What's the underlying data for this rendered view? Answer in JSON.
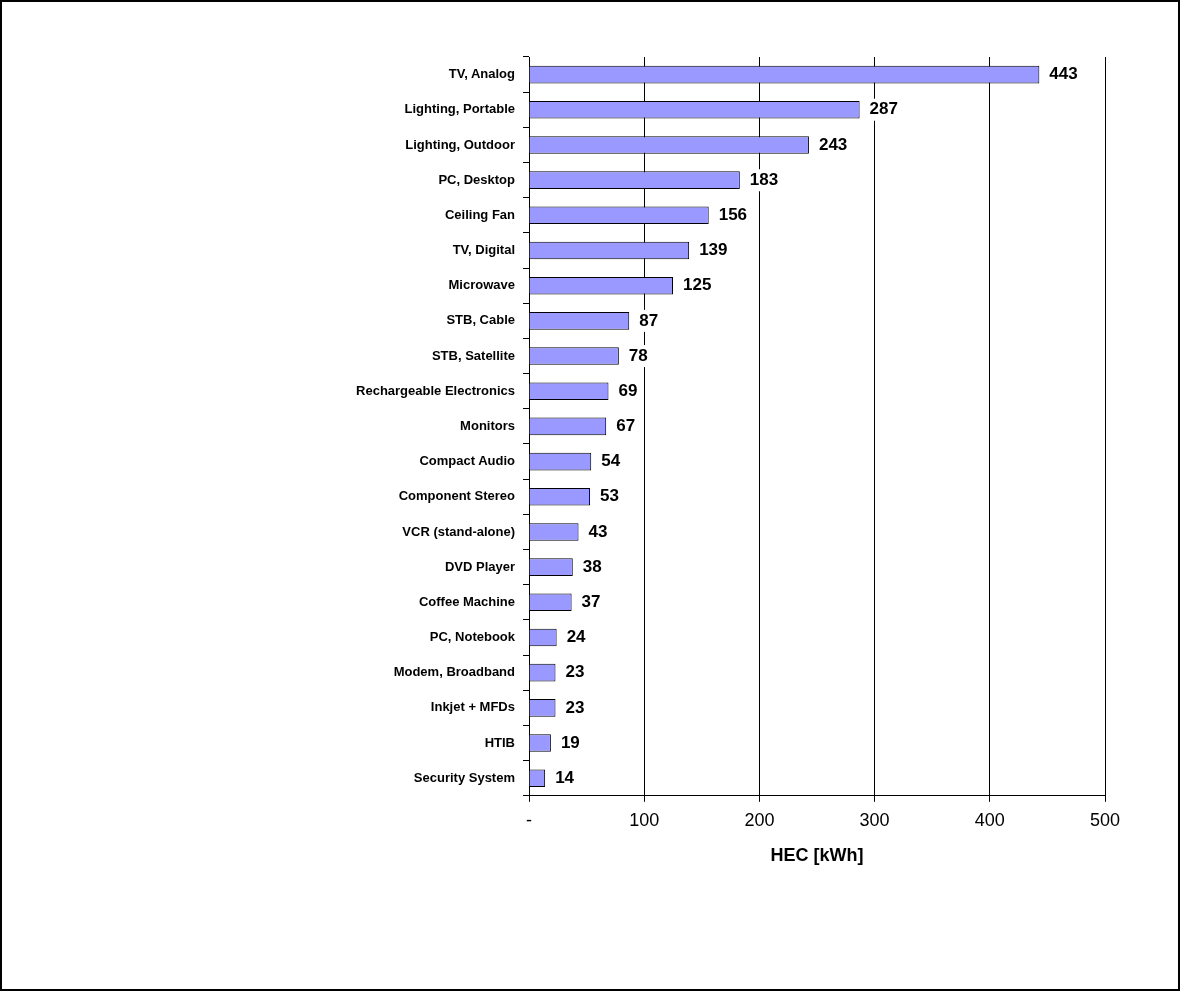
{
  "chart_data": {
    "type": "bar",
    "orientation": "horizontal",
    "xlabel": "HEC [kWh]",
    "categories": [
      "TV, Analog",
      "Lighting, Portable",
      "Lighting, Outdoor",
      "PC, Desktop",
      "Ceiling Fan",
      "TV, Digital",
      "Microwave",
      "STB, Cable",
      "STB, Satellite",
      "Rechargeable Electronics",
      "Monitors",
      "Compact Audio",
      "Component Stereo",
      "VCR (stand-alone)",
      "DVD Player",
      "Coffee Machine",
      "PC, Notebook",
      "Modem, Broadband",
      "Inkjet + MFDs",
      "HTIB",
      "Security System"
    ],
    "values": [
      443,
      287,
      243,
      183,
      156,
      139,
      125,
      87,
      78,
      69,
      67,
      54,
      53,
      43,
      38,
      37,
      24,
      23,
      23,
      19,
      14
    ],
    "color": "#9999ff",
    "data_labels": true,
    "grid": "x",
    "legend": false,
    "xlim": [
      0,
      500
    ],
    "xticks": [
      {
        "value": 0,
        "label": "-"
      },
      100,
      200,
      300,
      400,
      500
    ]
  }
}
